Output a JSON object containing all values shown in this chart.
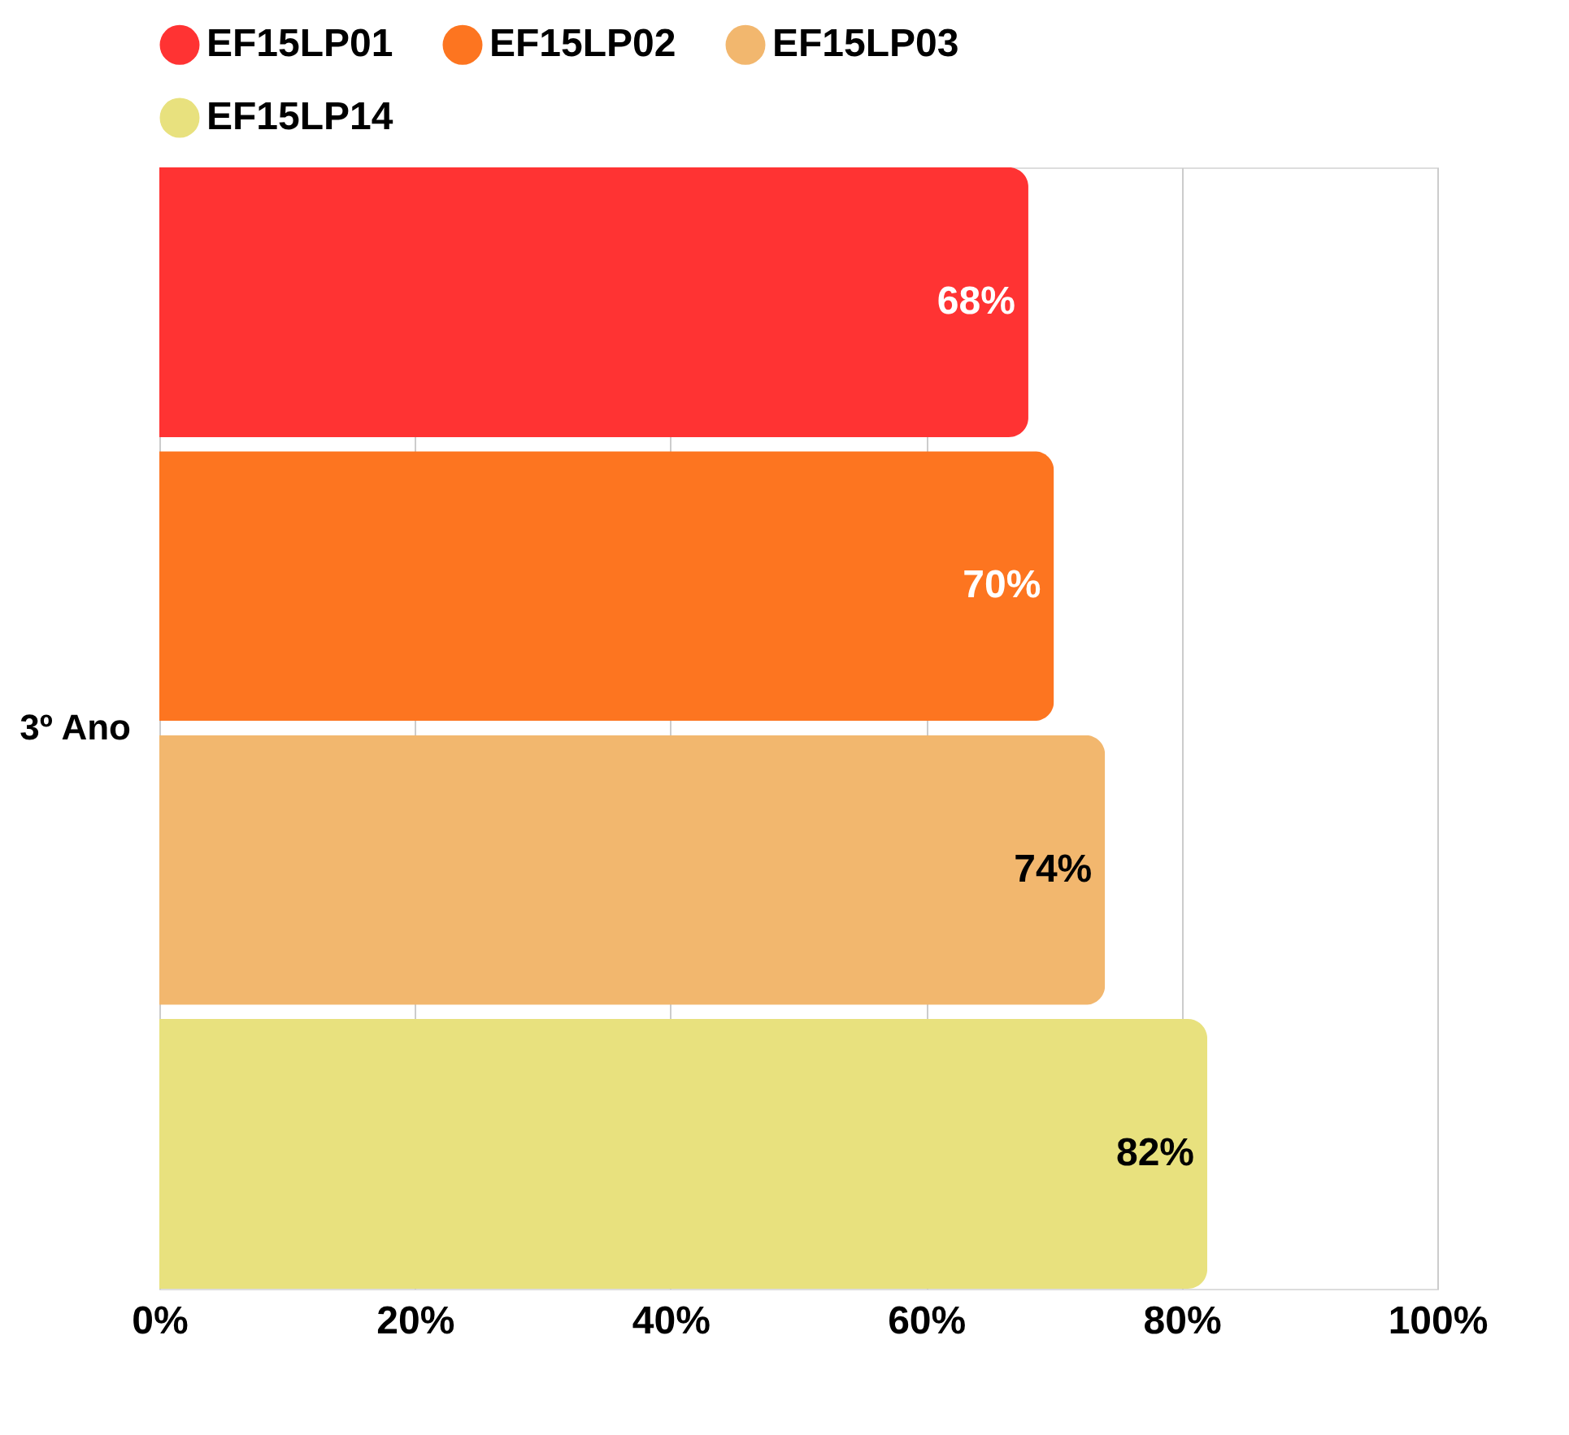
{
  "chart_data": {
    "type": "bar",
    "orientation": "horizontal",
    "categories": [
      "3º Ano"
    ],
    "series": [
      {
        "name": "EF15LP01",
        "color": "#ff3333",
        "values": [
          68
        ],
        "value_labels": [
          "68%"
        ]
      },
      {
        "name": "EF15LP02",
        "color": "#fd7520",
        "values": [
          70
        ],
        "value_labels": [
          "70%"
        ]
      },
      {
        "name": "EF15LP03",
        "color": "#f2b76e",
        "values": [
          74
        ],
        "value_labels": [
          "74%"
        ]
      },
      {
        "name": "EF15LP14",
        "color": "#e8e17e",
        "values": [
          82
        ],
        "value_labels": [
          "82%"
        ]
      }
    ],
    "xlim": [
      0,
      100
    ],
    "xticks": [
      {
        "value": 0,
        "label": "0%"
      },
      {
        "value": 20,
        "label": "20%"
      },
      {
        "value": 40,
        "label": "40%"
      },
      {
        "value": 60,
        "label": "60%"
      },
      {
        "value": 80,
        "label": "80%"
      },
      {
        "value": 100,
        "label": "100%"
      }
    ],
    "grid": "x",
    "legend": "top"
  }
}
